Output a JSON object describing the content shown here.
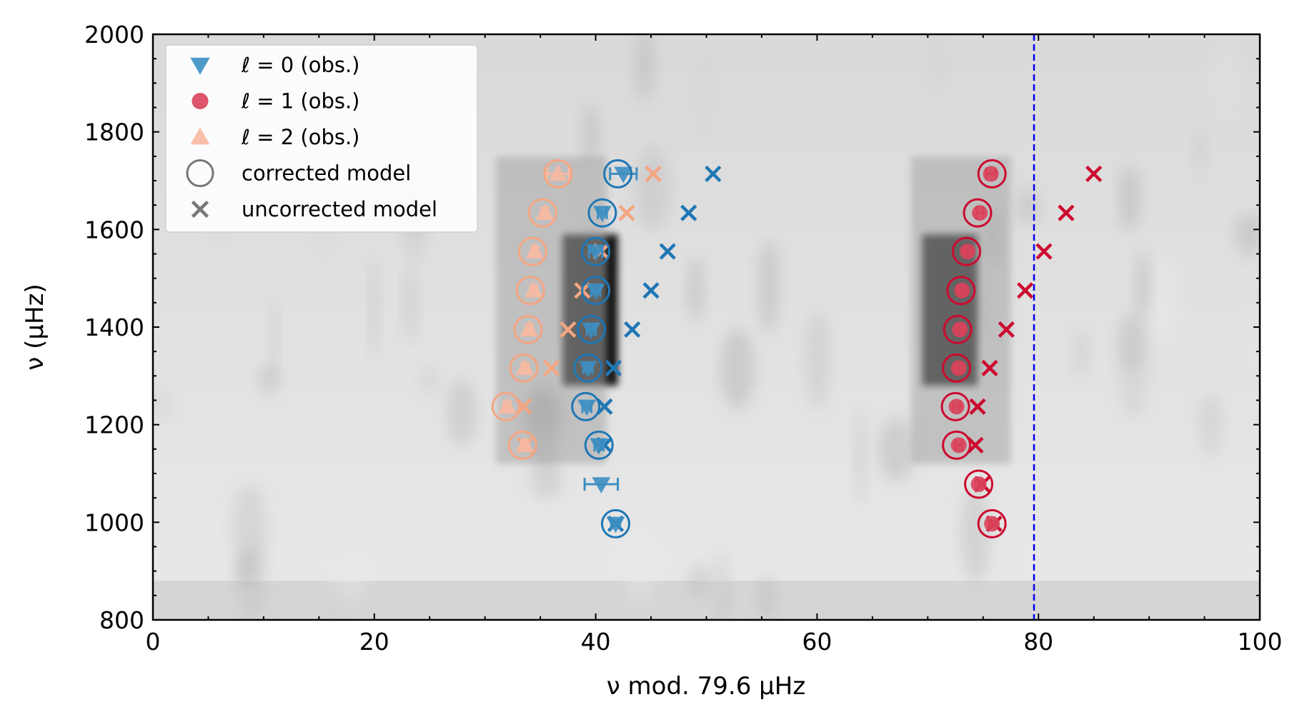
{
  "chart_data": {
    "type": "scatter",
    "title": "",
    "xlabel": "ν mod. 79.6 μHz",
    "ylabel": "ν (μHz)",
    "xlim": [
      0,
      100
    ],
    "ylim": [
      800,
      2000
    ],
    "x_ticks": [
      0,
      20,
      40,
      60,
      80,
      100
    ],
    "x_tick_labels": [
      "0",
      "20",
      "40",
      "60",
      "80",
      "100"
    ],
    "y_ticks": [
      800,
      1000,
      1200,
      1400,
      1600,
      1800,
      2000
    ],
    "y_tick_labels": [
      "800",
      "1000",
      "1200",
      "1400",
      "1600",
      "1800",
      "2000"
    ],
    "vline": {
      "x": 79.6,
      "color": "#0000ee",
      "style": "dashed"
    },
    "colors": {
      "l0": "#1f77b4",
      "l1": "#cc0a2f",
      "l2": "#f5a582",
      "legend_gray": "#777777",
      "background_gray": "#888888"
    },
    "background_ridges": [
      {
        "x_center": 39.5,
        "x_halfwidth": 2.5,
        "y_min": 1280,
        "y_max": 1590,
        "intensity": 1.0
      },
      {
        "x_center": 72.0,
        "x_halfwidth": 2.5,
        "y_min": 1280,
        "y_max": 1590,
        "intensity": 1.0
      },
      {
        "x_center": 36.0,
        "x_halfwidth": 5.0,
        "y_min": 1120,
        "y_max": 1750,
        "intensity": 0.35
      },
      {
        "x_center": 73.0,
        "x_halfwidth": 4.5,
        "y_min": 1120,
        "y_max": 1750,
        "intensity": 0.35
      }
    ],
    "series": [
      {
        "name": "ℓ = 0 (obs.)",
        "marker": "triangle-down",
        "color": "#3c8ec2",
        "points": [
          {
            "x": 40.5,
            "y": 1078,
            "xerr": 1.5
          },
          {
            "x": 41.8,
            "y": 997,
            "xerr": 0.4
          },
          {
            "x": 40.3,
            "y": 1158,
            "xerr": 0.4
          },
          {
            "x": 39.2,
            "y": 1237,
            "xerr": 0.4
          },
          {
            "x": 39.3,
            "y": 1316,
            "xerr": 0.4
          },
          {
            "x": 39.6,
            "y": 1395,
            "xerr": 0.4
          },
          {
            "x": 40.0,
            "y": 1475,
            "xerr": 0.4
          },
          {
            "x": 40.0,
            "y": 1555,
            "xerr": 0.6
          },
          {
            "x": 40.6,
            "y": 1634,
            "xerr": 0.4
          },
          {
            "x": 42.5,
            "y": 1714,
            "xerr": 1.2
          }
        ]
      },
      {
        "name": "ℓ = 1 (obs.)",
        "marker": "circle",
        "color": "#d9435a",
        "points": [
          {
            "x": 75.8,
            "y": 997,
            "xerr": 0.3
          },
          {
            "x": 74.6,
            "y": 1078,
            "xerr": 0.3
          },
          {
            "x": 72.8,
            "y": 1158,
            "xerr": 0.3
          },
          {
            "x": 72.6,
            "y": 1237,
            "xerr": 0.3
          },
          {
            "x": 72.8,
            "y": 1316,
            "xerr": 0.3
          },
          {
            "x": 72.9,
            "y": 1395,
            "xerr": 0.3
          },
          {
            "x": 73.1,
            "y": 1475,
            "xerr": 0.3
          },
          {
            "x": 73.6,
            "y": 1555,
            "xerr": 0.3
          },
          {
            "x": 74.7,
            "y": 1634,
            "xerr": 0.3
          },
          {
            "x": 75.7,
            "y": 1714,
            "xerr": 0.4
          }
        ]
      },
      {
        "name": "ℓ = 2 (obs.)",
        "marker": "triangle-up",
        "color": "#f7b9a1",
        "points": [
          {
            "x": 33.6,
            "y": 1158,
            "xerr": 0.3
          },
          {
            "x": 32.0,
            "y": 1237,
            "xerr": 0.3
          },
          {
            "x": 33.6,
            "y": 1316,
            "xerr": 0.3
          },
          {
            "x": 34.0,
            "y": 1395,
            "xerr": 0.3
          },
          {
            "x": 34.4,
            "y": 1475,
            "xerr": 0.3
          },
          {
            "x": 34.5,
            "y": 1555,
            "xerr": 0.3
          },
          {
            "x": 35.4,
            "y": 1634,
            "xerr": 0.3
          },
          {
            "x": 36.6,
            "y": 1714,
            "xerr": 1.0
          }
        ]
      },
      {
        "name": "corrected model",
        "marker": "open-circle",
        "groups": [
          {
            "color": "#1f77b4",
            "points": [
              [
                41.8,
                997
              ],
              [
                40.3,
                1158
              ],
              [
                39.1,
                1237
              ],
              [
                39.3,
                1316
              ],
              [
                39.6,
                1395
              ],
              [
                40.0,
                1475
              ],
              [
                40.0,
                1555
              ],
              [
                40.6,
                1634
              ],
              [
                42.0,
                1714
              ]
            ]
          },
          {
            "color": "#cc0a2f",
            "points": [
              [
                75.8,
                997
              ],
              [
                74.6,
                1078
              ],
              [
                72.6,
                1158
              ],
              [
                72.5,
                1237
              ],
              [
                72.6,
                1316
              ],
              [
                72.7,
                1395
              ],
              [
                73.0,
                1475
              ],
              [
                73.5,
                1555
              ],
              [
                74.5,
                1634
              ],
              [
                75.8,
                1714
              ]
            ]
          },
          {
            "color": "#f5a582",
            "points": [
              [
                33.4,
                1158
              ],
              [
                31.9,
                1237
              ],
              [
                33.5,
                1316
              ],
              [
                33.9,
                1395
              ],
              [
                34.1,
                1475
              ],
              [
                34.3,
                1555
              ],
              [
                35.2,
                1634
              ],
              [
                36.6,
                1714
              ]
            ]
          }
        ]
      },
      {
        "name": "uncorrected model",
        "marker": "x",
        "groups": [
          {
            "color": "#1f77b4",
            "points": [
              [
                41.8,
                997
              ],
              [
                40.8,
                1158
              ],
              [
                40.8,
                1237
              ],
              [
                41.6,
                1316
              ],
              [
                43.3,
                1395
              ],
              [
                45.0,
                1475
              ],
              [
                46.5,
                1555
              ],
              [
                48.4,
                1634
              ],
              [
                50.6,
                1714
              ]
            ]
          },
          {
            "color": "#cc0a2f",
            "points": [
              [
                76.0,
                997
              ],
              [
                74.9,
                1078
              ],
              [
                74.3,
                1158
              ],
              [
                74.5,
                1237
              ],
              [
                75.6,
                1316
              ],
              [
                77.1,
                1395
              ],
              [
                78.8,
                1475
              ],
              [
                80.5,
                1555
              ],
              [
                82.5,
                1634
              ],
              [
                85.0,
                1714
              ]
            ]
          },
          {
            "color": "#f5a582",
            "points": [
              [
                33.6,
                1158
              ],
              [
                33.5,
                1237
              ],
              [
                36.0,
                1316
              ],
              [
                37.5,
                1395
              ],
              [
                38.8,
                1475
              ],
              [
                40.5,
                1555
              ],
              [
                42.8,
                1634
              ],
              [
                45.2,
                1714
              ]
            ]
          }
        ]
      }
    ],
    "legend": {
      "placement": "top-left",
      "entries": [
        {
          "label": "ℓ = 0 (obs.)",
          "marker": "triangle-down",
          "color": "#3c8ec2"
        },
        {
          "label": "ℓ = 1 (obs.)",
          "marker": "circle",
          "color": "#d9435a"
        },
        {
          "label": "ℓ = 2 (obs.)",
          "marker": "triangle-up",
          "color": "#f7b9a1"
        },
        {
          "label": "corrected model",
          "marker": "open-circle",
          "color": "#777777"
        },
        {
          "label": "uncorrected model",
          "marker": "x",
          "color": "#777777"
        }
      ]
    }
  }
}
